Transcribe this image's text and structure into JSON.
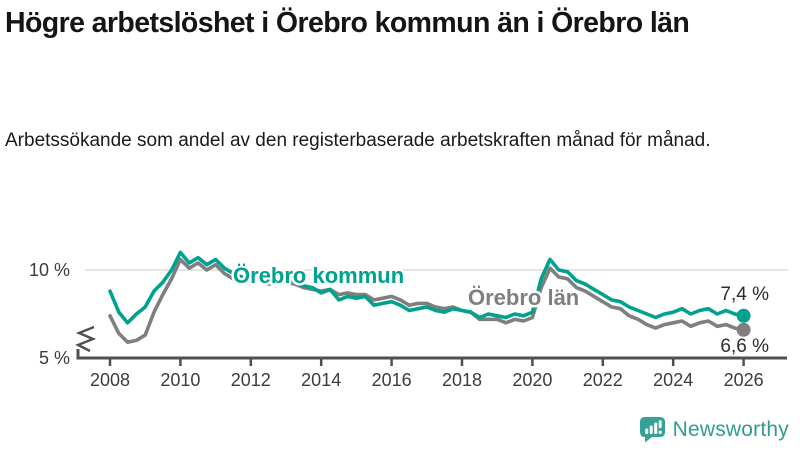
{
  "header": {
    "title": "Högre arbetslöshet i Örebro kommun än i Örebro län",
    "subtitle": "Arbetssökande som andel av den registerbaserade arbetskraften månad för månad."
  },
  "chart_data": {
    "type": "line",
    "title": "Högre arbetslöshet i Örebro kommun än i Örebro län",
    "subtitle": "Arbetssökande som andel av den registerbaserade arbetskraften månad för månad.",
    "x_unit": "year",
    "x": [
      2008,
      2008.25,
      2008.5,
      2008.75,
      2009,
      2009.25,
      2009.5,
      2009.75,
      2010,
      2010.25,
      2010.5,
      2010.75,
      2011,
      2011.25,
      2011.5,
      2011.75,
      2012,
      2012.25,
      2012.5,
      2012.75,
      2013,
      2013.25,
      2013.5,
      2013.75,
      2014,
      2014.25,
      2014.5,
      2014.75,
      2015,
      2015.25,
      2015.5,
      2015.75,
      2016,
      2016.25,
      2016.5,
      2016.75,
      2017,
      2017.25,
      2017.5,
      2017.75,
      2018,
      2018.25,
      2018.5,
      2018.75,
      2019,
      2019.25,
      2019.5,
      2019.75,
      2020,
      2020.25,
      2020.5,
      2020.75,
      2021,
      2021.25,
      2021.5,
      2021.75,
      2022,
      2022.25,
      2022.5,
      2022.75,
      2023,
      2023.25,
      2023.5,
      2023.75,
      2024,
      2024.25,
      2024.5,
      2024.75,
      2025,
      2025.25,
      2025.5,
      2025.75,
      2026
    ],
    "series": [
      {
        "name": "Örebro kommun",
        "color": "#00a18f",
        "end_label": "7,4 %",
        "end_value": 7.4,
        "values": [
          8.8,
          7.6,
          7.0,
          7.5,
          7.9,
          8.8,
          9.3,
          10.0,
          11.0,
          10.4,
          10.7,
          10.3,
          10.6,
          10.1,
          9.8,
          9.6,
          9.6,
          9.7,
          9.4,
          9.5,
          9.5,
          9.3,
          9.1,
          9.0,
          8.7,
          8.9,
          8.3,
          8.5,
          8.4,
          8.5,
          8.0,
          8.1,
          8.2,
          8.0,
          7.7,
          7.8,
          7.9,
          7.7,
          7.6,
          7.8,
          7.7,
          7.6,
          7.3,
          7.5,
          7.4,
          7.3,
          7.5,
          7.4,
          7.6,
          9.5,
          10.6,
          10.0,
          9.9,
          9.4,
          9.2,
          8.9,
          8.6,
          8.3,
          8.2,
          7.9,
          7.7,
          7.5,
          7.3,
          7.5,
          7.6,
          7.8,
          7.5,
          7.7,
          7.8,
          7.5,
          7.7,
          7.5,
          7.4
        ]
      },
      {
        "name": "Örebro län",
        "color": "#7f7f7f",
        "end_label": "6,6 %",
        "end_value": 6.6,
        "values": [
          7.4,
          6.4,
          5.9,
          6.0,
          6.3,
          7.6,
          8.6,
          9.5,
          10.6,
          10.1,
          10.4,
          10.0,
          10.3,
          9.8,
          9.5,
          9.3,
          9.4,
          9.5,
          9.2,
          9.3,
          9.3,
          9.2,
          9.0,
          8.9,
          8.8,
          8.9,
          8.6,
          8.7,
          8.6,
          8.6,
          8.3,
          8.4,
          8.5,
          8.3,
          8.0,
          8.1,
          8.1,
          7.9,
          7.8,
          7.9,
          7.7,
          7.6,
          7.2,
          7.2,
          7.2,
          7.0,
          7.2,
          7.1,
          7.3,
          9.0,
          10.1,
          9.6,
          9.5,
          9.0,
          8.8,
          8.5,
          8.2,
          7.9,
          7.8,
          7.4,
          7.2,
          6.9,
          6.7,
          6.9,
          7.0,
          7.1,
          6.8,
          7.0,
          7.1,
          6.8,
          6.9,
          6.7,
          6.6
        ]
      }
    ],
    "yticks": [
      {
        "label": "10 %",
        "value": 10
      },
      {
        "label": "5 %",
        "value": 5
      }
    ],
    "xticks": [
      2008,
      2010,
      2012,
      2014,
      2016,
      2018,
      2020,
      2022,
      2024,
      2026
    ],
    "ylim": [
      5,
      11.6
    ],
    "xlim": [
      2007.1,
      2027.2
    ],
    "grid": "single horizontal gridline at 10 %",
    "axis_break": true,
    "legend": "inline series labels on the lines"
  },
  "footer": {
    "brand": "Newsworthy"
  },
  "colors": {
    "kommun_teal": "#00a18f",
    "lan_gray": "#7f7f7f",
    "logo_teal": "#35a295",
    "grid": "#dbdbdb",
    "axis": "#4f4f4f"
  }
}
